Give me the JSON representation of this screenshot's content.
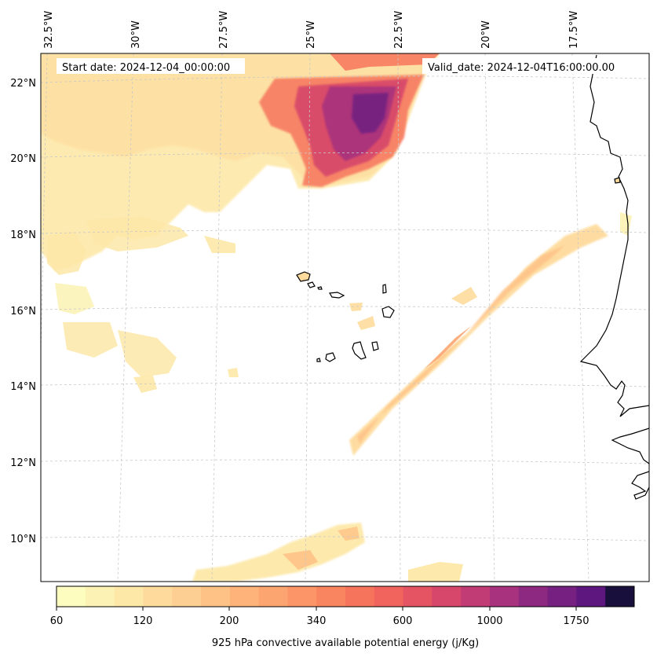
{
  "map": {
    "start_date": "Start date: 2024-12-04_00:00:00",
    "valid_date": "Valid_date: 2024-12-04T16:00:00.00",
    "variable_label": "925 hPa convective available potential energy (j/Kg)",
    "lon_labels": [
      "32.5°W",
      "30°W",
      "27.5°W",
      "25°W",
      "22.5°W",
      "20°W",
      "17.5°W"
    ],
    "lat_labels": [
      "22°N",
      "20°N",
      "18°N",
      "16°N",
      "14°N",
      "12°N",
      "10°N"
    ]
  },
  "colorbar": {
    "tick_labels": [
      "60",
      "120",
      "200",
      "340",
      "600",
      "1000",
      "1750"
    ],
    "colors": [
      "#fcfdbf",
      "#fcf2b3",
      "#fde8a8",
      "#fedb9c",
      "#fecf92",
      "#fec287",
      "#feb37b",
      "#fda571",
      "#fc9568",
      "#f98560",
      "#f6745c",
      "#f0645d",
      "#e55463",
      "#d6476b",
      "#c13b75",
      "#a8327d",
      "#8e2981",
      "#762181",
      "#5d177f",
      "#180f3d"
    ]
  },
  "colors": {
    "land_outline": "#000000",
    "grid": "#c8c8c8",
    "frame": "#000000"
  }
}
